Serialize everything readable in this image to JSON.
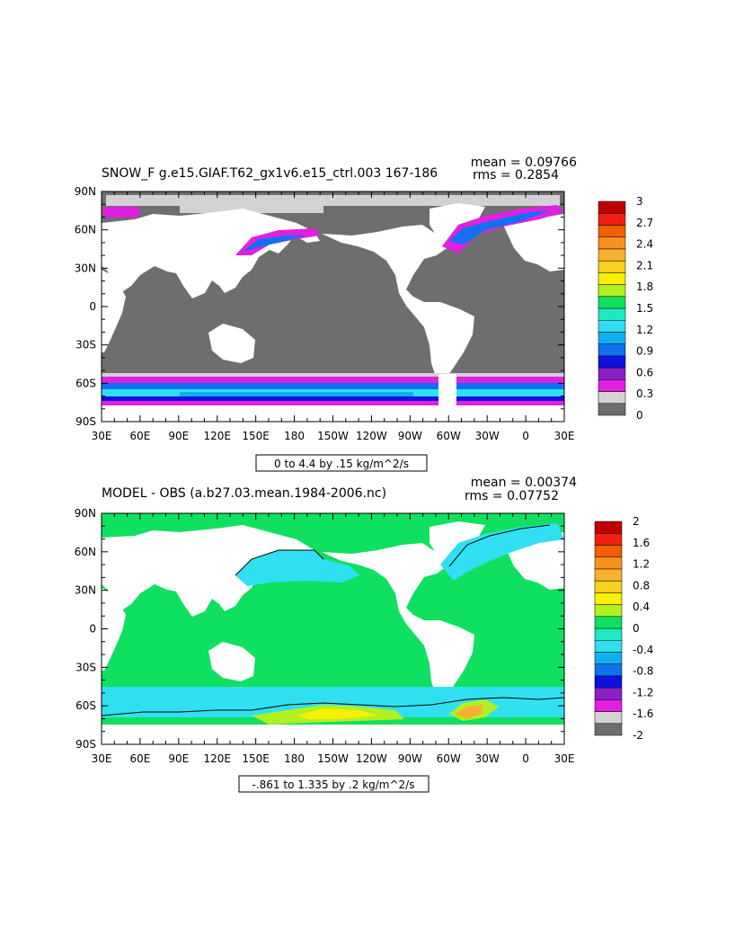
{
  "chart_data": [
    {
      "type": "heatmap",
      "title": "SNOW_F g.e15.GIAF.T62_gx1v6.e15_ctrl.003 167-186",
      "mean_label": "mean = 0.09766",
      "rms_label": "rms = 0.2854",
      "range_label": "0 to 4.4 by .15 kg/m^2/s",
      "y_ticks": [
        "90N",
        "60N",
        "30N",
        "0",
        "30S",
        "60S",
        "90S"
      ],
      "x_ticks": [
        "30E",
        "60E",
        "90E",
        "120E",
        "150E",
        "180",
        "150W",
        "120W",
        "90W",
        "60W",
        "30W",
        "0",
        "30E"
      ],
      "colorbar": {
        "labels": [
          "3",
          "2.7",
          "2.4",
          "2.1",
          "1.8",
          "1.5",
          "1.2",
          "0.9",
          "0.6",
          "0.3",
          "0"
        ],
        "colors": [
          "#6e6e6e",
          "#d2d2d2",
          "#e020e0",
          "#8a20c8",
          "#1010e0",
          "#1070f0",
          "#10b0f0",
          "#30e0f0",
          "#20e8c0",
          "#10e060",
          "#b0f020",
          "#f8f000",
          "#f8d020",
          "#f8b030",
          "#f89020",
          "#f06000",
          "#f02010",
          "#c00000"
        ]
      }
    },
    {
      "type": "heatmap",
      "title": "MODEL - OBS (a.b27.03.mean.1984-2006.nc)",
      "mean_label": "mean = 0.00374",
      "rms_label": "rms = 0.07752",
      "range_label": "-.861 to 1.335 by .2 kg/m^2/s",
      "y_ticks": [
        "90N",
        "60N",
        "30N",
        "0",
        "30S",
        "60S",
        "90S"
      ],
      "x_ticks": [
        "30E",
        "60E",
        "90E",
        "120E",
        "150E",
        "180",
        "150W",
        "120W",
        "90W",
        "60W",
        "30W",
        "0",
        "30E"
      ],
      "colorbar": {
        "labels": [
          "2",
          "1.6",
          "1.2",
          "0.8",
          "0.4",
          "0",
          "-0.4",
          "-0.8",
          "-1.2",
          "-1.6",
          "-2"
        ],
        "colors": [
          "#6e6e6e",
          "#d2d2d2",
          "#e020e0",
          "#8a20c8",
          "#1010e0",
          "#1070f0",
          "#10b0f0",
          "#30e0f0",
          "#20e8c0",
          "#10e060",
          "#b0f020",
          "#f8f000",
          "#f8d020",
          "#f8b030",
          "#f89020",
          "#f06000",
          "#f02010",
          "#c00000"
        ]
      }
    }
  ]
}
